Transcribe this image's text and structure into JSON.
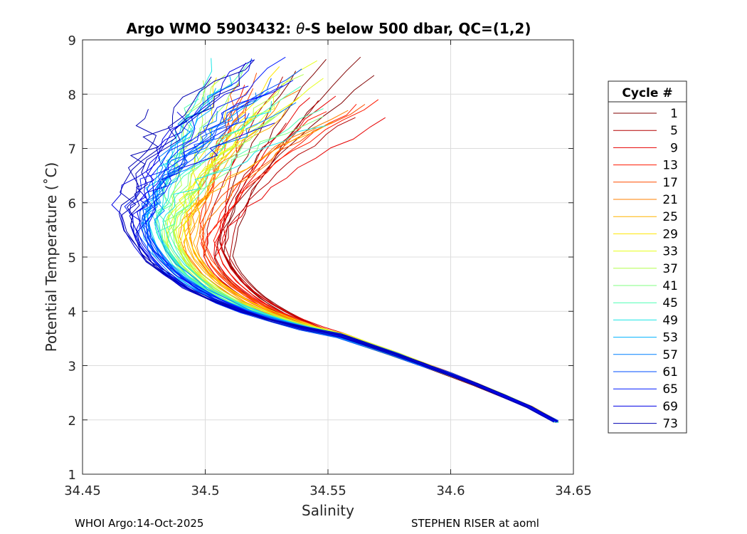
{
  "chart_data": {
    "type": "line",
    "title": "Argo WMO 5903432: θ-S below 500 dbar,  QC=(1,2)",
    "title_prefix": "Argo WMO 5903432: ",
    "title_theta": "θ",
    "title_suffix": "-S below 500 dbar,  QC=(1,2)",
    "xlabel": "Salinity",
    "ylabel": "Potential Temperature (˚C)",
    "xlim": [
      34.45,
      34.65
    ],
    "ylim": [
      1,
      9
    ],
    "xticks": [
      34.45,
      34.5,
      34.55,
      34.6,
      34.65
    ],
    "xtick_labels": [
      "34.45",
      "34.5",
      "34.55",
      "34.6",
      "34.65"
    ],
    "yticks": [
      1,
      2,
      3,
      4,
      5,
      6,
      7,
      8,
      9
    ],
    "ytick_labels": [
      "1",
      "2",
      "3",
      "4",
      "5",
      "6",
      "7",
      "8",
      "9"
    ],
    "grid": true,
    "legend_title": "Cycle #",
    "legend_position": "outside-right",
    "legend_entries": [
      "1",
      "5",
      "9",
      "13",
      "17",
      "21",
      "25",
      "29",
      "33",
      "37",
      "41",
      "45",
      "49",
      "53",
      "57",
      "61",
      "65",
      "69",
      "73"
    ],
    "legend_colors": [
      "#800000",
      "#b30000",
      "#e60000",
      "#ff1a00",
      "#ff4d00",
      "#ff8000",
      "#ffb300",
      "#ffe600",
      "#e6ff1a",
      "#b3ff4d",
      "#80ff80",
      "#4dffb3",
      "#1ae6e6",
      "#00b3ff",
      "#0080ff",
      "#004dff",
      "#001aff",
      "#0000e6",
      "#0000b3"
    ],
    "series_shape": {
      "profiles_per_group": 4,
      "deep_end": {
        "salinity": 34.643,
        "temperature": 1.97
      },
      "knee_point": {
        "salinity": 34.555,
        "temperature": 3.55
      },
      "salinity_minimum_warm_cycles": {
        "salinity": 34.51,
        "temperature": 5.1
      },
      "salinity_minimum_cold_cycles": {
        "salinity": 34.467,
        "temperature": 5.7
      },
      "top_temperature_range": [
        7.4,
        8.7
      ]
    }
  },
  "footer": {
    "left": "WHOI Argo:14-Oct-2025",
    "right": "STEPHEN RISER at aoml"
  }
}
